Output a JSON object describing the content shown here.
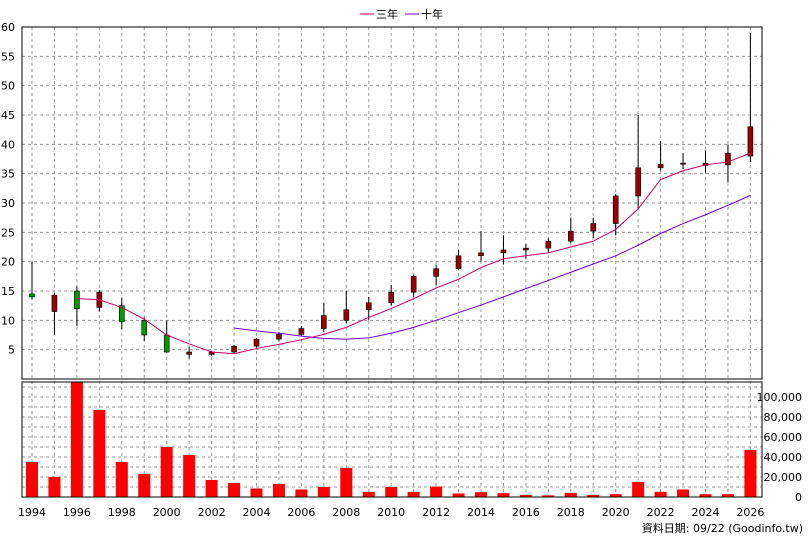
{
  "legend": [
    {
      "label": "三年",
      "color": "#cc0066"
    },
    {
      "label": "十年",
      "color": "#6600cc"
    }
  ],
  "footer": "資料日期: 09/22  (Goodinfo.tw)",
  "chart_data": {
    "type": "candlestick",
    "x": [
      1994,
      1995,
      1996,
      1997,
      1998,
      1999,
      2000,
      2001,
      2002,
      2003,
      2004,
      2005,
      2006,
      2007,
      2008,
      2009,
      2010,
      2011,
      2012,
      2013,
      2014,
      2015,
      2016,
      2017,
      2018,
      2019,
      2020,
      2021,
      2022,
      2023,
      2024,
      2025,
      2026
    ],
    "ohlc": [
      [
        14.5,
        20.0,
        13.5,
        14.0
      ],
      [
        11.5,
        14.7,
        7.5,
        14.3
      ],
      [
        15.0,
        15.8,
        9.0,
        12.0
      ],
      [
        12.2,
        15.2,
        11.5,
        14.8
      ],
      [
        12.5,
        13.8,
        8.5,
        9.8
      ],
      [
        10.0,
        10.5,
        6.5,
        7.5
      ],
      [
        7.5,
        10.0,
        4.5,
        4.6
      ],
      [
        4.2,
        5.5,
        3.5,
        4.6
      ],
      [
        4.2,
        4.8,
        4.0,
        4.6
      ],
      [
        4.6,
        5.8,
        4.4,
        5.6
      ],
      [
        5.6,
        7.0,
        5.4,
        6.8
      ],
      [
        6.8,
        8.0,
        6.5,
        7.6
      ],
      [
        7.6,
        9.0,
        7.4,
        8.6
      ],
      [
        8.6,
        13.0,
        8.0,
        10.8
      ],
      [
        10.0,
        15.0,
        9.5,
        11.8
      ],
      [
        11.8,
        14.0,
        10.0,
        13.0
      ],
      [
        13.0,
        16.0,
        12.5,
        14.8
      ],
      [
        14.8,
        17.8,
        14.0,
        17.5
      ],
      [
        17.5,
        19.5,
        16.0,
        18.8
      ],
      [
        18.8,
        22.0,
        18.5,
        21.0
      ],
      [
        21.0,
        25.2,
        20.0,
        21.5
      ],
      [
        21.5,
        24.5,
        19.5,
        22.0
      ],
      [
        22.0,
        23.0,
        20.5,
        22.3
      ],
      [
        22.3,
        24.0,
        21.5,
        23.5
      ],
      [
        23.5,
        27.5,
        23.2,
        25.2
      ],
      [
        25.2,
        27.5,
        24.0,
        26.5
      ],
      [
        26.5,
        31.5,
        24.5,
        31.2
      ],
      [
        31.2,
        45.0,
        29.0,
        36.0
      ],
      [
        36.0,
        40.5,
        35.5,
        36.6
      ],
      [
        36.6,
        38.5,
        35.8,
        36.8
      ],
      [
        36.4,
        39.0,
        35.2,
        36.8
      ],
      [
        36.5,
        40.0,
        33.5,
        38.5
      ],
      [
        38.0,
        59.0,
        37.0,
        43.0
      ]
    ],
    "volume": [
      35000,
      20000,
      115000,
      87000,
      35000,
      23000,
      50000,
      42000,
      17000,
      14000,
      8500,
      13000,
      7500,
      10000,
      29000,
      5000,
      10000,
      5000,
      10500,
      3500,
      4800,
      3800,
      2000,
      1600,
      4000,
      2000,
      2800,
      15000,
      5200,
      7500,
      2800,
      2800,
      47000
    ],
    "ma3": [
      null,
      null,
      13.7,
      13.5,
      12.2,
      10.2,
      7.5,
      6.0,
      4.6,
      4.3,
      5.2,
      5.9,
      6.7,
      7.6,
      8.8,
      10.5,
      12.0,
      13.7,
      15.5,
      17.0,
      19.0,
      20.5,
      21.0,
      21.5,
      22.5,
      23.5,
      25.5,
      29.0,
      34.0,
      35.5,
      36.5,
      37.0,
      38.5
    ],
    "ma10": [
      null,
      null,
      null,
      null,
      null,
      null,
      null,
      null,
      null,
      8.7,
      8.2,
      7.8,
      7.3,
      6.9,
      6.8,
      7.0,
      7.8,
      8.8,
      10.0,
      11.3,
      12.6,
      14.0,
      15.4,
      16.8,
      18.2,
      19.6,
      21.0,
      22.8,
      24.8,
      26.5,
      28.0,
      29.6,
      31.3
    ],
    "xticks": [
      "1994",
      "1996",
      "1998",
      "2000",
      "2002",
      "2004",
      "2006",
      "2008",
      "2010",
      "2012",
      "2014",
      "2016",
      "2018",
      "2020",
      "2022",
      "2024",
      "2026"
    ],
    "price_yticks": [
      "5",
      "10",
      "15",
      "20",
      "25",
      "30",
      "35",
      "40",
      "45",
      "50",
      "55",
      "60"
    ],
    "volume_yticks": [
      "0",
      "20,000",
      "40,000",
      "60,000",
      "80,000",
      "100,000"
    ],
    "price_ylim": [
      0,
      60
    ],
    "volume_ylim": [
      0,
      115000
    ],
    "colors": {
      "up": "#990000",
      "down": "#009900",
      "volume": "#ff0000",
      "ma3": "#cc0066",
      "ma10": "#6600cc",
      "grid": "#999999"
    },
    "grid": true,
    "legend_position": "top-center"
  }
}
